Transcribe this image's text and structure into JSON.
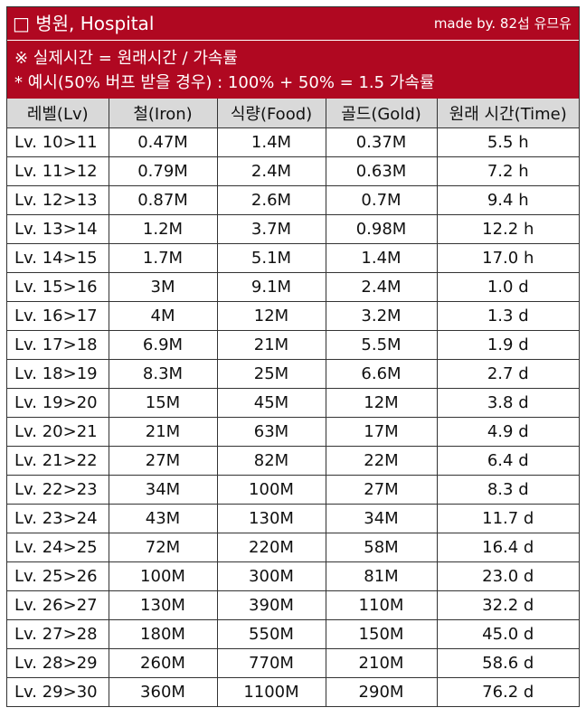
{
  "header": {
    "title": "□ 병원, Hospital",
    "credit": "made by. 82섭 유므유"
  },
  "notes": [
    "※ 실제시간 = 원래시간 / 가속률",
    "* 예시(50% 버프 받을 경우) : 100% + 50% = 1.5 가속률"
  ],
  "colors": {
    "header_bg": "#b00821",
    "header_text": "#ffffff",
    "column_header_bg": "#d9d9d9"
  },
  "table": {
    "columns": [
      "레벨(Lv)",
      "철(Iron)",
      "식량(Food)",
      "골드(Gold)",
      "원래 시간(Time)"
    ],
    "rows": [
      [
        "Lv. 10>11",
        "0.47M",
        "1.4M",
        "0.37M",
        "5.5 h"
      ],
      [
        "Lv. 11>12",
        "0.79M",
        "2.4M",
        "0.63M",
        "7.2 h"
      ],
      [
        "Lv. 12>13",
        "0.87M",
        "2.6M",
        "0.7M",
        "9.4 h"
      ],
      [
        "Lv. 13>14",
        "1.2M",
        "3.7M",
        "0.98M",
        "12.2 h"
      ],
      [
        "Lv. 14>15",
        "1.7M",
        "5.1M",
        "1.4M",
        "17.0 h"
      ],
      [
        "Lv. 15>16",
        "3M",
        "9.1M",
        "2.4M",
        "1.0 d"
      ],
      [
        "Lv. 16>17",
        "4M",
        "12M",
        "3.2M",
        "1.3 d"
      ],
      [
        "Lv. 17>18",
        "6.9M",
        "21M",
        "5.5M",
        "1.9 d"
      ],
      [
        "Lv. 18>19",
        "8.3M",
        "25M",
        "6.6M",
        "2.7 d"
      ],
      [
        "Lv. 19>20",
        "15M",
        "45M",
        "12M",
        "3.8 d"
      ],
      [
        "Lv. 20>21",
        "21M",
        "63M",
        "17M",
        "4.9 d"
      ],
      [
        "Lv. 21>22",
        "27M",
        "82M",
        "22M",
        "6.4 d"
      ],
      [
        "Lv. 22>23",
        "34M",
        "100M",
        "27M",
        "8.3 d"
      ],
      [
        "Lv. 23>24",
        "43M",
        "130M",
        "34M",
        "11.7 d"
      ],
      [
        "Lv. 24>25",
        "72M",
        "220M",
        "58M",
        "16.4 d"
      ],
      [
        "Lv. 25>26",
        "100M",
        "300M",
        "81M",
        "23.0 d"
      ],
      [
        "Lv. 26>27",
        "130M",
        "390M",
        "110M",
        "32.2 d"
      ],
      [
        "Lv. 27>28",
        "180M",
        "550M",
        "150M",
        "45.0 d"
      ],
      [
        "Lv. 28>29",
        "260M",
        "770M",
        "210M",
        "58.6 d"
      ],
      [
        "Lv. 29>30",
        "360M",
        "1100M",
        "290M",
        "76.2 d"
      ]
    ]
  }
}
